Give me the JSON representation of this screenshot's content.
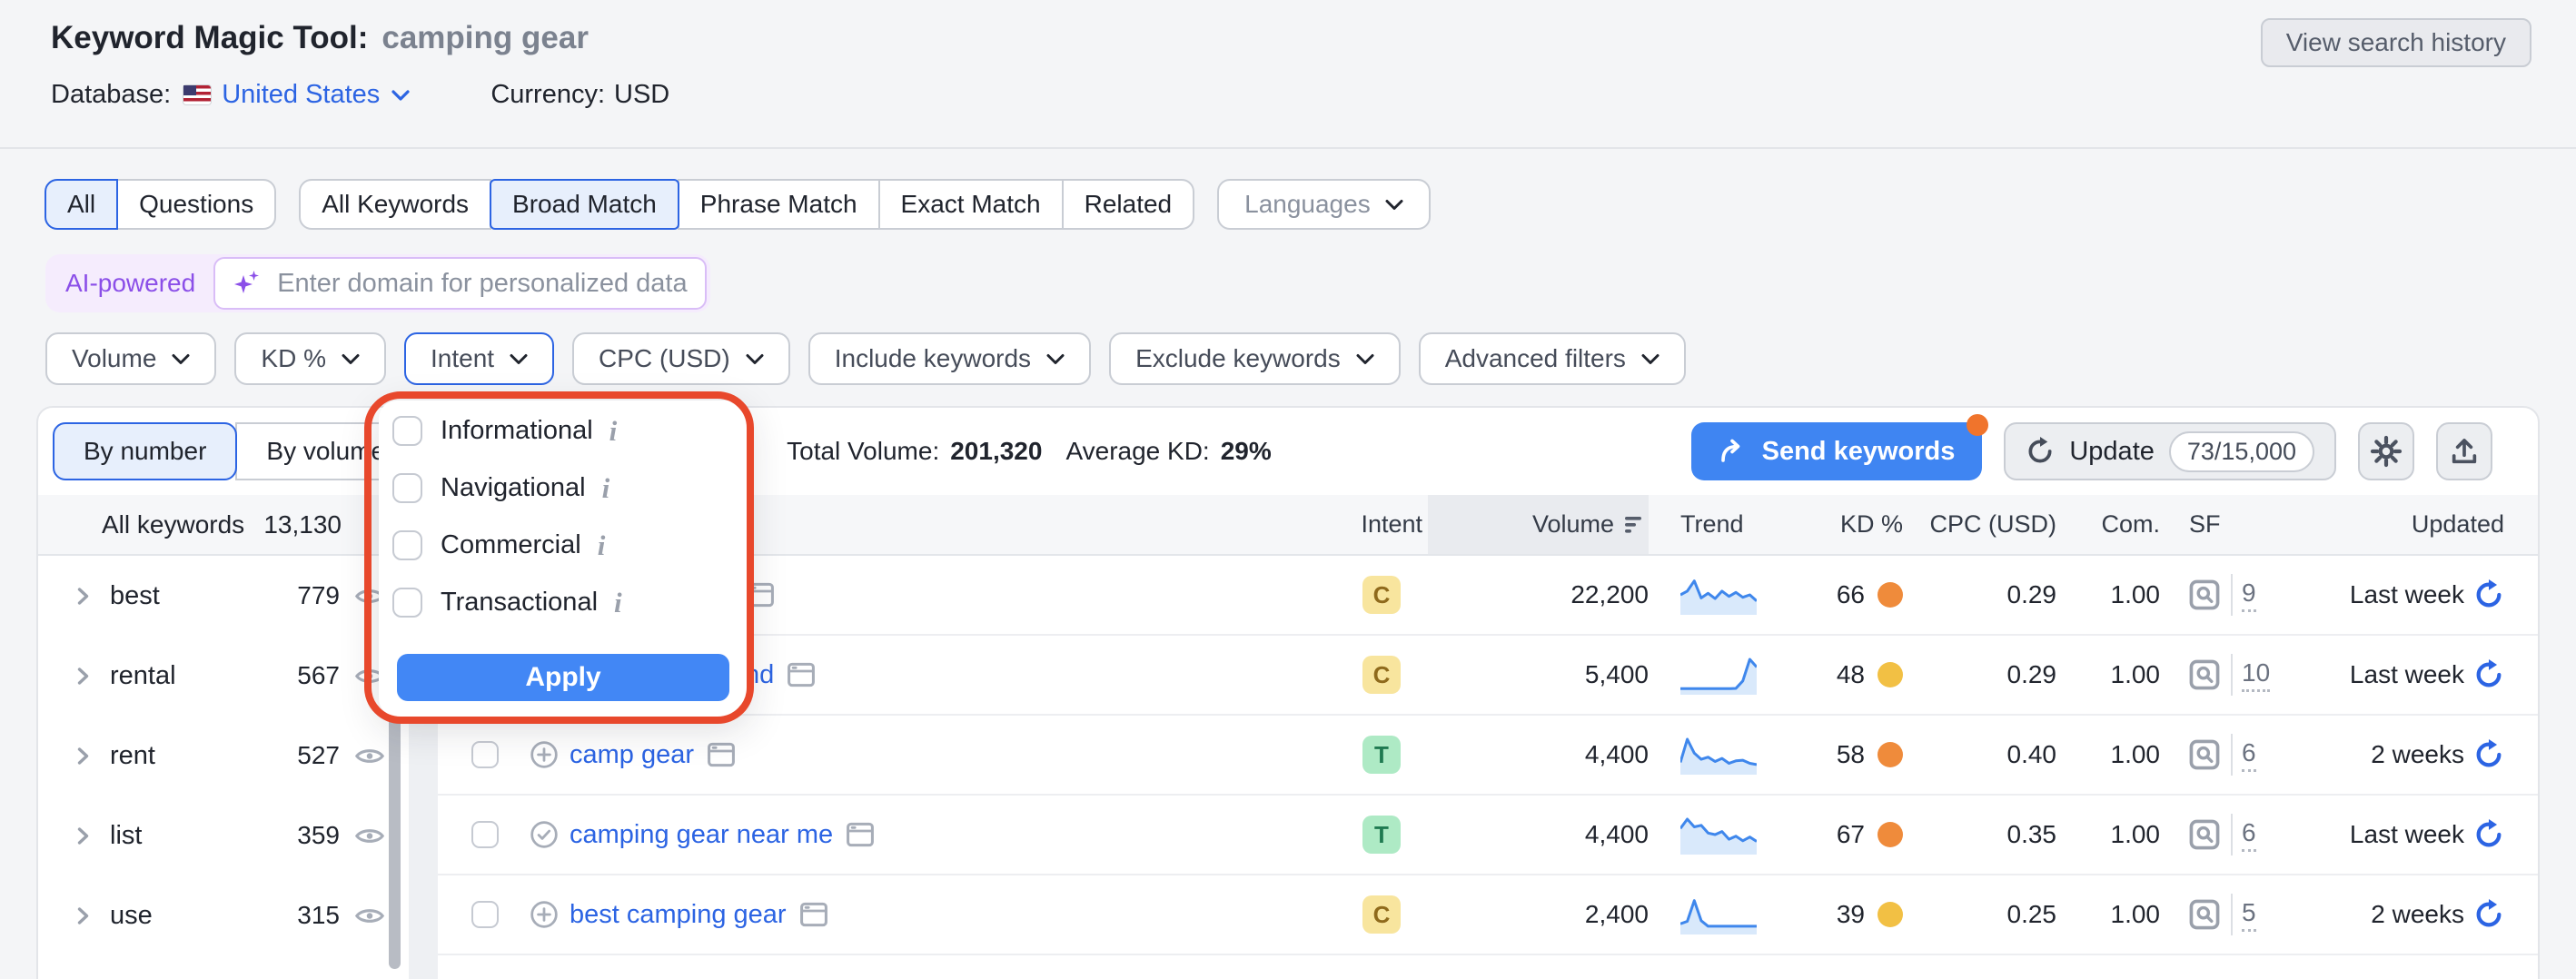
{
  "header": {
    "title": "Keyword Magic Tool:",
    "query": "camping gear",
    "database_label": "Database:",
    "database_value": "United States",
    "currency_label": "Currency:",
    "currency_value": "USD",
    "view_history_label": "View search history"
  },
  "tabs": {
    "group1": [
      {
        "label": "All",
        "selected": true
      },
      {
        "label": "Questions",
        "selected": false
      }
    ],
    "group2": [
      {
        "label": "All Keywords",
        "selected": false
      },
      {
        "label": "Broad Match",
        "selected": true
      },
      {
        "label": "Phrase Match",
        "selected": false
      },
      {
        "label": "Exact Match",
        "selected": false
      },
      {
        "label": "Related",
        "selected": false
      }
    ],
    "languages_label": "Languages"
  },
  "ai_bar": {
    "badge": "AI-powered",
    "placeholder": "Enter domain for personalized data"
  },
  "filters": [
    {
      "label": "Volume",
      "active": false
    },
    {
      "label": "KD %",
      "active": false
    },
    {
      "label": "Intent",
      "active": true
    },
    {
      "label": "CPC (USD)",
      "active": false
    },
    {
      "label": "Include keywords",
      "active": false
    },
    {
      "label": "Exclude keywords",
      "active": false
    },
    {
      "label": "Advanced filters",
      "active": false
    }
  ],
  "intent_popup": {
    "options": [
      {
        "label": "Informational"
      },
      {
        "label": "Navigational"
      },
      {
        "label": "Commercial"
      },
      {
        "label": "Transactional"
      }
    ],
    "apply_label": "Apply"
  },
  "toolbar": {
    "view_toggle": [
      "By number",
      "By volume"
    ],
    "total_volume_label": "Total Volume:",
    "total_volume": "201,320",
    "avg_kd_label": "Average KD:",
    "avg_kd": "29%",
    "send_keywords_label": "Send keywords",
    "update_label": "Update",
    "update_count": "73/15,000"
  },
  "sidebar": {
    "header_label": "All keywords",
    "header_count": "13,130",
    "items": [
      {
        "label": "best",
        "count": "779"
      },
      {
        "label": "rental",
        "count": "567"
      },
      {
        "label": "rent",
        "count": "527"
      },
      {
        "label": "list",
        "count": "359"
      },
      {
        "label": "use",
        "count": "315"
      }
    ]
  },
  "table": {
    "columns": {
      "intent": "Intent",
      "volume": "Volume",
      "trend": "Trend",
      "kd": "KD %",
      "cpc": "CPC (USD)",
      "com": "Com.",
      "sf": "SF",
      "updated": "Updated"
    },
    "rows": [
      {
        "keyword": "",
        "intent": "C",
        "intent_class": "c",
        "volume": "22,200",
        "kd": "66",
        "kd_color": "orange",
        "cpc": "0.29",
        "com": "1.00",
        "sf": "9",
        "updated": "Last week",
        "trend": [
          0.5,
          0.62,
          0.95,
          0.4,
          0.55,
          0.38,
          0.62,
          0.45,
          0.58,
          0.42,
          0.5,
          0.3
        ]
      },
      {
        "keyword": "nd",
        "intent": "C",
        "intent_class": "c",
        "volume": "5,400",
        "kd": "48",
        "kd_color": "amber",
        "cpc": "0.29",
        "com": "1.00",
        "sf": "10",
        "updated": "Last week",
        "trend": [
          0.05,
          0.05,
          0.05,
          0.05,
          0.05,
          0.05,
          0.05,
          0.05,
          0.06,
          0.3,
          1.0,
          0.75
        ]
      },
      {
        "keyword": "camp gear",
        "intent": "T",
        "intent_class": "t",
        "volume": "4,400",
        "kd": "58",
        "kd_color": "orange",
        "cpc": "0.40",
        "com": "1.00",
        "sf": "6",
        "updated": "2 weeks",
        "trend": [
          0.25,
          1.0,
          0.55,
          0.35,
          0.42,
          0.28,
          0.38,
          0.22,
          0.3,
          0.32,
          0.22,
          0.18
        ]
      },
      {
        "keyword": "camping gear near me",
        "intent": "T",
        "intent_class": "t",
        "volume": "4,400",
        "kd": "67",
        "kd_color": "orange",
        "cpc": "0.35",
        "com": "1.00",
        "sf": "6",
        "updated": "Last week",
        "trend": [
          0.7,
          1.0,
          0.75,
          0.8,
          0.55,
          0.5,
          0.6,
          0.35,
          0.45,
          0.3,
          0.42,
          0.28
        ]
      },
      {
        "keyword": "best camping gear",
        "intent": "C",
        "intent_class": "c",
        "volume": "2,400",
        "kd": "39",
        "kd_color": "amber",
        "cpc": "0.25",
        "com": "1.00",
        "sf": "5",
        "updated": "2 weeks",
        "trend": [
          0.2,
          0.28,
          0.95,
          0.3,
          0.12,
          0.12,
          0.12,
          0.12,
          0.12,
          0.12,
          0.12,
          0.12
        ]
      }
    ]
  },
  "colors": {
    "accent_blue": "#2c64e3",
    "button_blue": "#3f85f2",
    "apply_blue": "#4287f5",
    "annotation_red": "#e8482c",
    "badge_commercial_bg": "#f8e59e",
    "badge_transactional_bg": "#aeeac5",
    "kd_orange": "#ef8b3b",
    "kd_amber": "#f2c044",
    "ai_purple": "#8b4fe8",
    "notification_orange": "#f0742c"
  }
}
